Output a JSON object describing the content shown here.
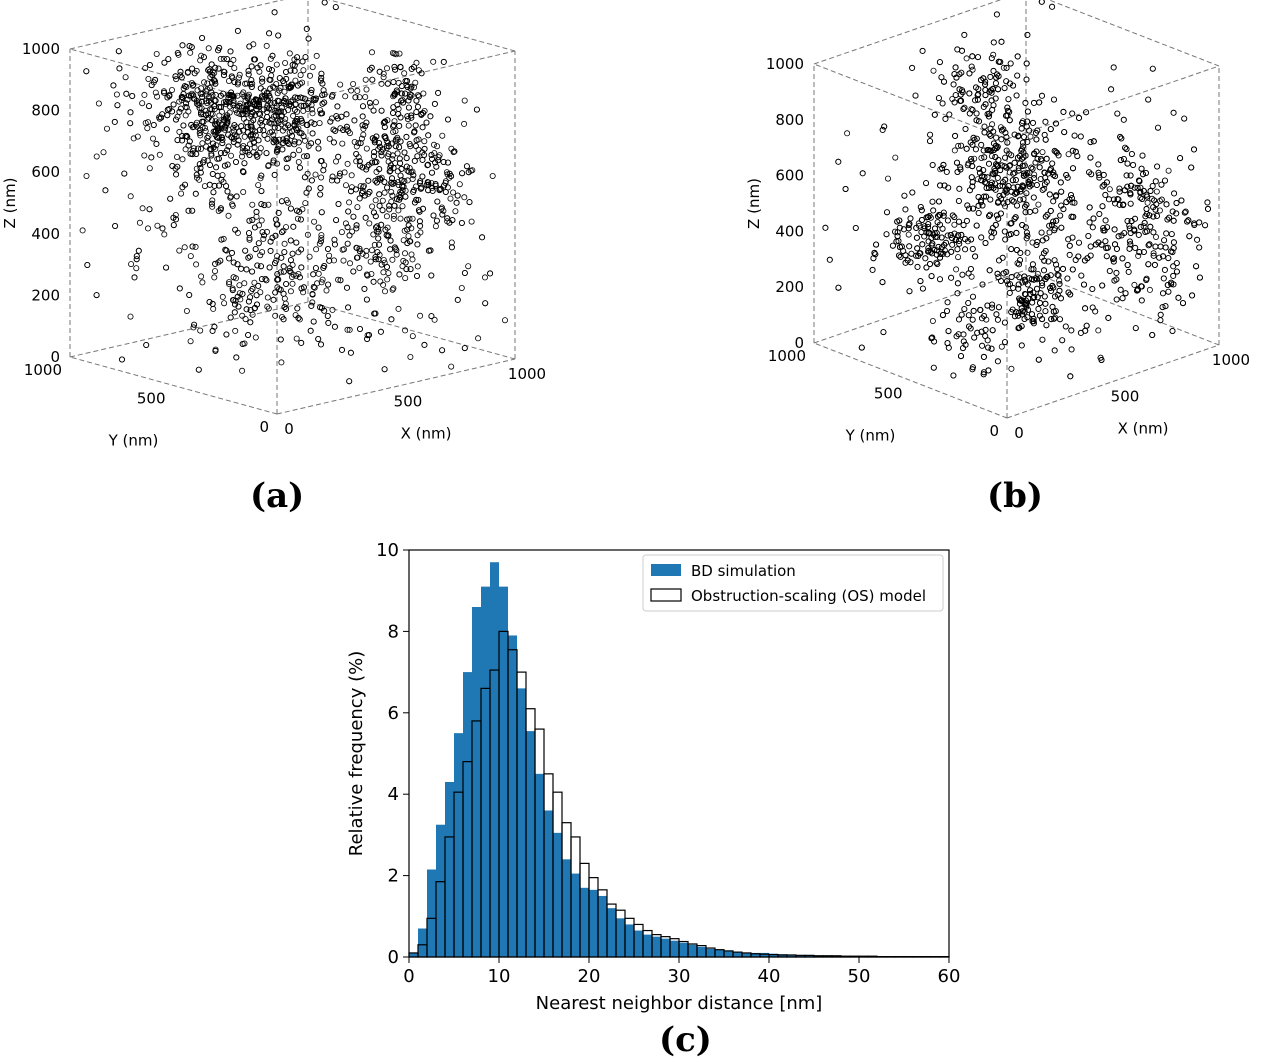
{
  "captions": {
    "a": "(a)",
    "b": "(b)",
    "c": "(c)"
  },
  "chart_data": [
    {
      "type": "scatter",
      "id": "a",
      "projection": "3d",
      "marker": "open circle",
      "xlabel": "X (nm)",
      "ylabel": "Y (nm)",
      "zlabel": "Z (nm)",
      "xlim": [
        0,
        1000
      ],
      "ylim": [
        0,
        1000
      ],
      "zlim": [
        0,
        1000
      ],
      "x_ticks": [
        "0",
        "500",
        "1000"
      ],
      "y_ticks": [
        "1000",
        "500",
        "0"
      ],
      "z_ticks": [
        "1000",
        "800",
        "600",
        "400",
        "200",
        "0"
      ]
    },
    {
      "type": "scatter",
      "id": "b",
      "projection": "3d",
      "marker": "open circle",
      "xlabel": "X (nm)",
      "ylabel": "Y (nm)",
      "zlabel": "Z (nm)",
      "xlim": [
        0,
        1000
      ],
      "ylim": [
        0,
        1000
      ],
      "zlim": [
        0,
        1000
      ],
      "x_ticks": [
        "0",
        "500",
        "1000"
      ],
      "y_ticks": [
        "1000",
        "500",
        "0"
      ],
      "z_ticks": [
        "1000",
        "800",
        "600",
        "400",
        "200",
        "0"
      ]
    },
    {
      "type": "bar",
      "id": "c",
      "xlabel": "Nearest neighbor distance [nm]",
      "ylabel": "Relative frequency (%)",
      "xlim": [
        0,
        60
      ],
      "ylim": [
        0,
        10
      ],
      "x_ticks": [
        "0",
        "10",
        "20",
        "30",
        "40",
        "50",
        "60"
      ],
      "y_ticks": [
        "0",
        "2",
        "4",
        "6",
        "8",
        "10"
      ],
      "bin_width": 1,
      "legend_position": "top-right",
      "bin_starts": [
        0,
        1,
        2,
        3,
        4,
        5,
        6,
        7,
        8,
        9,
        10,
        11,
        12,
        13,
        14,
        15,
        16,
        17,
        18,
        19,
        20,
        21,
        22,
        23,
        24,
        25,
        26,
        27,
        28,
        29,
        30,
        31,
        32,
        33,
        34,
        35,
        36,
        37,
        38,
        39,
        40,
        41,
        42,
        43,
        44,
        45,
        46,
        47,
        48,
        49,
        50,
        51,
        52,
        53,
        54,
        55,
        56,
        57,
        58,
        59
      ],
      "series": [
        {
          "name": "BD simulation",
          "style": "filled",
          "color": "#1f77b4",
          "values": [
            0.1,
            0.7,
            2.15,
            3.25,
            4.3,
            5.5,
            7.0,
            8.6,
            9.1,
            9.7,
            9.1,
            7.9,
            6.6,
            5.55,
            4.5,
            3.6,
            3.05,
            2.4,
            2.05,
            1.7,
            1.65,
            1.5,
            1.2,
            0.95,
            0.8,
            0.65,
            0.55,
            0.5,
            0.45,
            0.4,
            0.35,
            0.3,
            0.25,
            0.2,
            0.18,
            0.15,
            0.12,
            0.1,
            0.1,
            0.1,
            0.08,
            0.07,
            0.06,
            0.05,
            0.05,
            0.04,
            0.04,
            0.03,
            0.03,
            0.03,
            0.02,
            0.02,
            0.02,
            0.02,
            0.01,
            0.01,
            0.01,
            0.01,
            0.01,
            0.01
          ]
        },
        {
          "name": "Obstruction-scaling (OS) model",
          "style": "outline",
          "color": "#ffffff",
          "edge_color": "#000000",
          "values": [
            0.1,
            0.3,
            0.95,
            1.85,
            2.95,
            4.05,
            4.8,
            5.8,
            6.6,
            7.05,
            8.0,
            7.55,
            7.0,
            6.1,
            5.6,
            4.5,
            4.05,
            3.3,
            2.95,
            2.3,
            1.95,
            1.65,
            1.3,
            1.15,
            0.95,
            0.8,
            0.65,
            0.55,
            0.5,
            0.45,
            0.38,
            0.32,
            0.28,
            0.22,
            0.18,
            0.15,
            0.12,
            0.1,
            0.08,
            0.07,
            0.06,
            0.05,
            0.05,
            0.04,
            0.04,
            0.03,
            0.03,
            0.03,
            0.02,
            0.02,
            0.02,
            0.02,
            0.01,
            0.01,
            0.01,
            0.01,
            0.01,
            0.01,
            0.01,
            0.01
          ]
        }
      ]
    }
  ]
}
